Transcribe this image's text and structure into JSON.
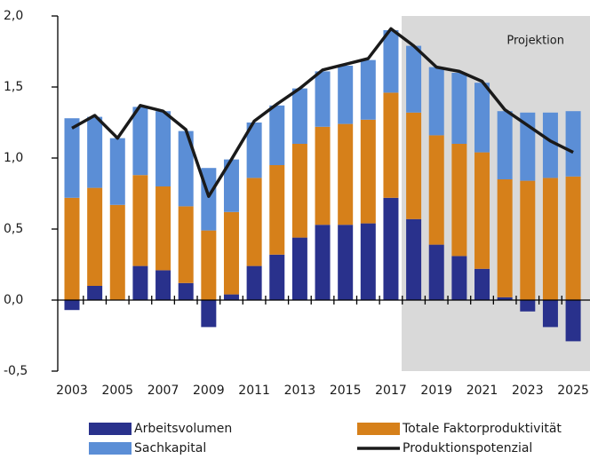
{
  "chart_data": {
    "type": "bar",
    "categories": [
      "2003",
      null,
      "2005",
      null,
      "2007",
      null,
      "2009",
      null,
      "2011",
      null,
      "2013",
      null,
      "2015",
      null,
      "2017",
      null,
      "2019",
      null,
      "2021",
      null,
      "2023",
      null,
      "2025"
    ],
    "series": [
      {
        "name": "Arbeitsvolumen",
        "color": "#29318c",
        "values": [
          -0.07,
          0.1,
          0,
          0.24,
          0.21,
          0.12,
          -0.19,
          0.04,
          0.24,
          0.32,
          0.44,
          0.53,
          0.53,
          0.54,
          0.72,
          0.57,
          0.39,
          0.31,
          0.22,
          0.02,
          -0.08,
          -0.19,
          -0.29
        ]
      },
      {
        "name": "Totale Faktorproduktivität",
        "color": "#d6801a",
        "values": [
          0.72,
          0.69,
          0.67,
          0.64,
          0.59,
          0.54,
          0.49,
          0.58,
          0.62,
          0.63,
          0.66,
          0.69,
          0.71,
          0.73,
          0.74,
          0.75,
          0.77,
          0.79,
          0.82,
          0.83,
          0.84,
          0.86,
          0.87
        ]
      },
      {
        "name": "Sachkapital",
        "color": "#5b8ed6",
        "values": [
          0.56,
          0.5,
          0.47,
          0.48,
          0.53,
          0.53,
          0.44,
          0.37,
          0.39,
          0.42,
          0.39,
          0.39,
          0.41,
          0.42,
          0.44,
          0.47,
          0.48,
          0.5,
          0.49,
          0.48,
          0.48,
          0.46,
          0.46
        ]
      },
      {
        "name": "Produktionspotenzial",
        "color": "#1a1a1a",
        "type": "line",
        "values": [
          1.21,
          1.3,
          1.14,
          1.37,
          1.33,
          1.2,
          0.73,
          0.99,
          1.26,
          1.38,
          1.49,
          1.62,
          1.66,
          1.7,
          1.91,
          1.79,
          1.64,
          1.61,
          1.54,
          1.34,
          1.23,
          1.12,
          1.04
        ]
      }
    ],
    "annotation": "Projektion",
    "ylim": [
      -0.5,
      2.0
    ],
    "yticks": [
      {
        "value": -0.5,
        "label": "-0,5"
      },
      {
        "value": 0,
        "label": "0,0"
      },
      {
        "value": 0.5,
        "label": "0,5"
      },
      {
        "value": 1.0,
        "label": "1,0"
      },
      {
        "value": 1.5,
        "label": "1,5"
      },
      {
        "value": 2.0,
        "label": "2,0"
      }
    ]
  }
}
